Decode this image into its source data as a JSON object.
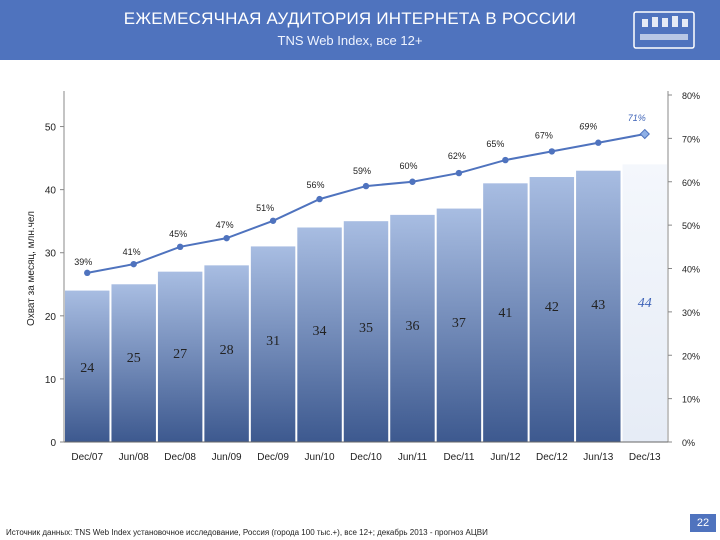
{
  "header": {
    "title": "ЕЖЕМЕСЯЧНАЯ АУДИТОРИЯ ИНТЕРНЕТА В РОССИИ",
    "subtitle": "TNS Web Index, все 12+"
  },
  "footer": {
    "source": "Источник данных: TNS Web Index установочное исследование, Россия (города 100 тыс.+), все 12+; декабрь 2013 - прогноз АЦВИ",
    "page_number": "22"
  },
  "colors": {
    "header": "#4f73be",
    "bar_top": "#a8bde2",
    "bar_bottom": "#3d598f",
    "forecast_bar": "#e6ecf6",
    "line": "#4f73be"
  },
  "chart_data": {
    "type": "bar",
    "categories": [
      "Dec/07",
      "Jun/08",
      "Dec/08",
      "Jun/09",
      "Dec/09",
      "Jun/10",
      "Dec/10",
      "Jun/11",
      "Dec/11",
      "Jun/12",
      "Dec/12",
      "Jun/13",
      "Dec/13"
    ],
    "series": [
      {
        "type": "bar",
        "axis": "left",
        "values": [
          24,
          25,
          27,
          28,
          31,
          34,
          35,
          36,
          37,
          41,
          42,
          43,
          44
        ],
        "labels": [
          "24",
          "25",
          "27",
          "28",
          "31",
          "34",
          "35",
          "36",
          "37",
          "41",
          "42",
          "43",
          "44"
        ]
      },
      {
        "type": "line",
        "axis": "right",
        "values": [
          39,
          41,
          45,
          47,
          51,
          56,
          59,
          60,
          62,
          65,
          67,
          69,
          71
        ],
        "labels": [
          "39%",
          "41%",
          "45%",
          "47%",
          "51%",
          "56%",
          "59%",
          "60%",
          "62%",
          "65%",
          "67%",
          "69%",
          "71%"
        ]
      }
    ],
    "ylabel": "Охват за месяц, млн.чел",
    "ylim": [
      0,
      55
    ],
    "yticks": [
      "0",
      "10",
      "20",
      "30",
      "40",
      "50"
    ],
    "y2lim": [
      0,
      80
    ],
    "y2ticks": [
      "0%",
      "10%",
      "20%",
      "30%",
      "40%",
      "50%",
      "60%",
      "70%",
      "80%"
    ],
    "forecast_last": true
  }
}
